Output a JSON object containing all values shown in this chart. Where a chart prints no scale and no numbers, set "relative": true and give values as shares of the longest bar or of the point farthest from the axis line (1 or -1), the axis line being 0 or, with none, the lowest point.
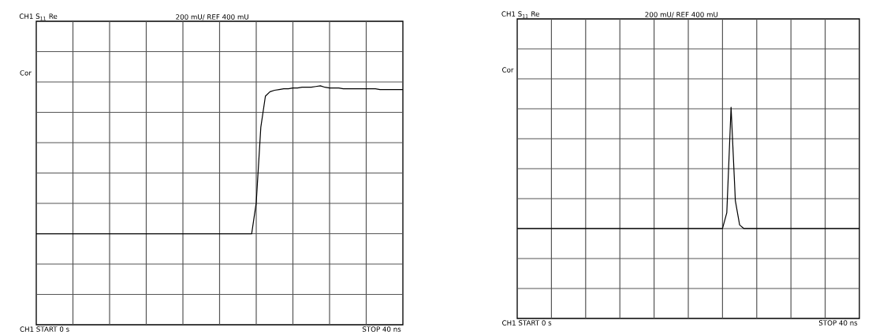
{
  "chart_data": [
    {
      "type": "line",
      "title": "CH1 S$_{11}$  Re",
      "subtitle": "200 mU/  REF 400 mU",
      "annotations": [
        "Cor",
        "CH1 START 0 s",
        "STOP 40 ns"
      ],
      "categories": [
        null,
        null,
        null,
        null,
        null,
        null,
        null,
        null,
        null,
        null,
        null,
        null,
        null,
        null,
        null,
        null,
        null,
        null,
        null,
        null,
        null,
        null,
        null,
        null,
        null,
        null,
        null,
        null,
        null,
        null,
        null,
        null,
        null,
        null,
        null,
        null,
        null,
        null,
        null,
        null,
        null,
        null,
        null,
        null,
        null,
        null,
        null,
        null,
        null,
        null,
        null,
        null,
        null,
        null,
        null,
        null,
        null,
        null,
        null,
        null,
        null,
        null,
        null,
        null,
        null,
        null,
        null,
        null,
        null,
        null,
        null,
        null,
        null,
        null,
        null,
        null,
        null,
        null,
        null,
        null,
        null
      ],
      "series": [
        {
          "color": "#000000",
          "values": [
            0,
            0,
            0,
            0,
            0,
            0,
            0,
            0,
            0,
            0,
            0,
            0,
            0,
            0,
            0,
            0,
            0,
            0,
            0,
            0,
            0,
            0,
            0,
            0,
            0,
            0,
            0,
            0,
            0,
            0,
            0,
            0,
            0,
            0,
            0,
            0,
            0,
            0,
            0,
            0,
            0,
            0,
            0,
            0,
            0,
            0,
            0,
            0,
            0.21,
            0.72,
            0.93,
            0.96,
            0.97,
            0.975,
            0.98,
            0.98,
            0.985,
            0.985,
            0.99,
            0.99,
            0.99,
            0.995,
            1,
            0.99,
            0.985,
            0.985,
            0.985,
            0.98,
            0.98,
            0.98,
            0.98,
            0.98,
            0.98,
            0.98,
            0.98,
            0.975,
            0.975,
            0.975,
            0.975,
            0.975,
            0.975
          ]
        }
      ],
      "relative": true,
      "grid": true,
      "marker": "none",
      "line_style": "solid"
    },
    {
      "type": "line",
      "title": "CH1 S$_{11}$  Re",
      "subtitle": "200 mU/  REF 400 mU",
      "annotations": [
        "Cor",
        "CH1 START 0 s",
        "STOP 40 ns"
      ],
      "categories": [
        null,
        null,
        null,
        null,
        null,
        null,
        null,
        null,
        null,
        null,
        null,
        null,
        null,
        null,
        null,
        null,
        null,
        null,
        null,
        null,
        null,
        null,
        null,
        null,
        null,
        null,
        null,
        null,
        null,
        null,
        null,
        null,
        null,
        null,
        null,
        null,
        null,
        null,
        null,
        null,
        null,
        null,
        null,
        null,
        null,
        null,
        null,
        null,
        null,
        null,
        null,
        null,
        null,
        null,
        null,
        null,
        null,
        null,
        null,
        null,
        null,
        null,
        null,
        null,
        null,
        null,
        null,
        null,
        null,
        null,
        null,
        null,
        null,
        null,
        null,
        null,
        null,
        null,
        null,
        null,
        null
      ],
      "series": [
        {
          "color": "#000000",
          "values": [
            0,
            0,
            0,
            0,
            0,
            0,
            0,
            0,
            0,
            0,
            0,
            0,
            0,
            0,
            0,
            0,
            0,
            0,
            0,
            0,
            0,
            0,
            0,
            0,
            0,
            0,
            0,
            0,
            0,
            0,
            0,
            0,
            0,
            0,
            0,
            0,
            0,
            0,
            0,
            0,
            0,
            0,
            0,
            0,
            0,
            0,
            0,
            0,
            0,
            0.13,
            1,
            0.23,
            0.03,
            0,
            0,
            0,
            0,
            0,
            0,
            0,
            0,
            0,
            0,
            0,
            0,
            0,
            0,
            0,
            0,
            0,
            0,
            0,
            0,
            0,
            0,
            0,
            0,
            0,
            0,
            0,
            0
          ]
        }
      ],
      "relative": true,
      "grid": true,
      "marker": "none",
      "line_style": "solid"
    }
  ]
}
